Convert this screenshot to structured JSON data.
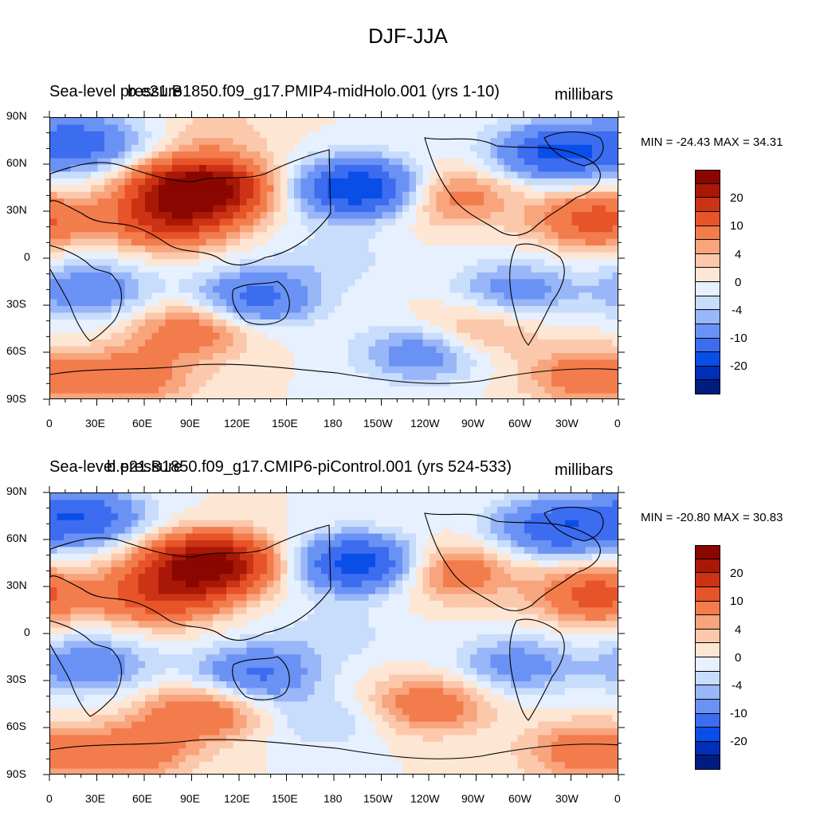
{
  "figure": {
    "title": "DJF-JJA"
  },
  "colors": {
    "levels": [
      "#001c80",
      "#0030b8",
      "#0a4ee8",
      "#3c6cf0",
      "#6a92f4",
      "#98b6f8",
      "#c8dcfc",
      "#e6f0fe",
      "#fde6d4",
      "#fcc8ab",
      "#f8a47c",
      "#f37c4c",
      "#e8542a",
      "#cc3214",
      "#a91806",
      "#8a0600"
    ],
    "land_outline": "#000000"
  },
  "chart_data": [
    {
      "type": "heatmap",
      "left_title": "Sea-level pressure",
      "center_title": "b.e21.B1850.f09_g17.PMIP4-midHolo.001 (yrs 1-10)",
      "units": "millibars",
      "stats": "MIN = -24.43 MAX =  34.31",
      "min": -24.43,
      "max": 34.31,
      "x_ticks": [
        "0",
        "30E",
        "60E",
        "90E",
        "120E",
        "150E",
        "180",
        "150W",
        "120W",
        "90W",
        "60W",
        "30W",
        "0"
      ],
      "y_ticks": [
        "90N",
        "60N",
        "30N",
        "0",
        "30S",
        "60S",
        "90S"
      ],
      "colorbar_labels": [
        "20",
        "10",
        "4",
        "0",
        "-4",
        "-10",
        "-20"
      ],
      "features": [
        {
          "lon": 95,
          "lat": 45,
          "val": 32
        },
        {
          "lon": 75,
          "lat": 25,
          "val": 15
        },
        {
          "lon": 195,
          "lat": 45,
          "val": -20
        },
        {
          "lon": 255,
          "lat": 40,
          "val": 8
        },
        {
          "lon": 320,
          "lat": 68,
          "val": -16
        },
        {
          "lon": 20,
          "lat": 75,
          "val": -12
        },
        {
          "lon": 345,
          "lat": 25,
          "val": 12
        },
        {
          "lon": 25,
          "lat": -20,
          "val": -9
        },
        {
          "lon": 130,
          "lat": -25,
          "val": -12
        },
        {
          "lon": 295,
          "lat": -20,
          "val": -8
        },
        {
          "lon": 90,
          "lat": -45,
          "val": 9
        },
        {
          "lon": 235,
          "lat": -60,
          "val": -9
        },
        {
          "lon": 270,
          "lat": -45,
          "val": 6
        },
        {
          "lon": 50,
          "lat": -75,
          "val": 9
        },
        {
          "lon": 340,
          "lat": -75,
          "val": 9
        },
        {
          "lon": 180,
          "lat": 0,
          "val": -3
        },
        {
          "lon": 105,
          "lat": 80,
          "val": 3
        }
      ]
    },
    {
      "type": "heatmap",
      "left_title": "Sea-level pressure",
      "center_title": "b.e21.B1850.f09_g17.CMIP6-piControl.001 (yrs 524-533)",
      "units": "millibars",
      "stats": "MIN = -20.80 MAX =  30.83",
      "min": -20.8,
      "max": 30.83,
      "x_ticks": [
        "0",
        "30E",
        "60E",
        "90E",
        "120E",
        "150E",
        "180",
        "150W",
        "120W",
        "90W",
        "60W",
        "30W",
        "0"
      ],
      "y_ticks": [
        "90N",
        "60N",
        "30N",
        "0",
        "30S",
        "60S",
        "90S"
      ],
      "colorbar_labels": [
        "20",
        "10",
        "4",
        "0",
        "-4",
        "-10",
        "-20"
      ],
      "features": [
        {
          "lon": 100,
          "lat": 45,
          "val": 29
        },
        {
          "lon": 70,
          "lat": 25,
          "val": 14
        },
        {
          "lon": 195,
          "lat": 45,
          "val": -18
        },
        {
          "lon": 255,
          "lat": 40,
          "val": 9
        },
        {
          "lon": 320,
          "lat": 68,
          "val": -14
        },
        {
          "lon": 20,
          "lat": 75,
          "val": -14
        },
        {
          "lon": 345,
          "lat": 25,
          "val": 12
        },
        {
          "lon": 25,
          "lat": -20,
          "val": -9
        },
        {
          "lon": 130,
          "lat": -25,
          "val": -11
        },
        {
          "lon": 295,
          "lat": -20,
          "val": -8
        },
        {
          "lon": 95,
          "lat": -50,
          "val": 10
        },
        {
          "lon": 240,
          "lat": -45,
          "val": 9
        },
        {
          "lon": 175,
          "lat": -55,
          "val": -4
        },
        {
          "lon": 50,
          "lat": -75,
          "val": 9
        },
        {
          "lon": 340,
          "lat": -75,
          "val": 9
        },
        {
          "lon": 180,
          "lat": 0,
          "val": -3
        }
      ]
    }
  ]
}
